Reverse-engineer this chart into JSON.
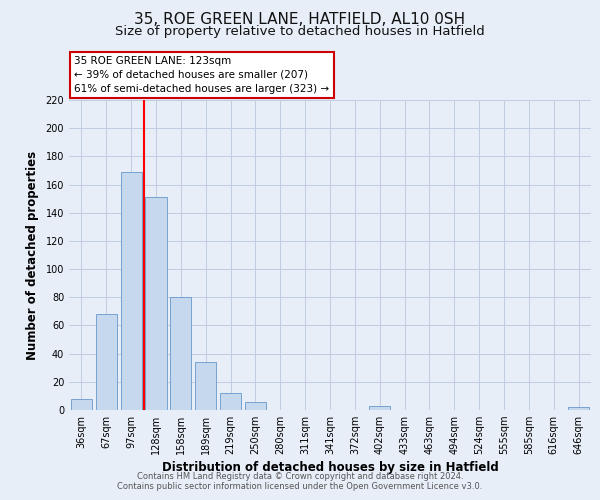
{
  "title": "35, ROE GREEN LANE, HATFIELD, AL10 0SH",
  "subtitle": "Size of property relative to detached houses in Hatfield",
  "xlabel": "Distribution of detached houses by size in Hatfield",
  "ylabel": "Number of detached properties",
  "bar_labels": [
    "36sqm",
    "67sqm",
    "97sqm",
    "128sqm",
    "158sqm",
    "189sqm",
    "219sqm",
    "250sqm",
    "280sqm",
    "311sqm",
    "341sqm",
    "372sqm",
    "402sqm",
    "433sqm",
    "463sqm",
    "494sqm",
    "524sqm",
    "555sqm",
    "585sqm",
    "616sqm",
    "646sqm"
  ],
  "bar_values": [
    8,
    68,
    169,
    151,
    80,
    34,
    12,
    6,
    0,
    0,
    0,
    0,
    3,
    0,
    0,
    0,
    0,
    0,
    0,
    0,
    2
  ],
  "bar_color": "#c5d8ee",
  "bar_edge_color": "#6699cc",
  "vline_color": "red",
  "vline_position": 3.0,
  "ylim": [
    0,
    220
  ],
  "yticks": [
    0,
    20,
    40,
    60,
    80,
    100,
    120,
    140,
    160,
    180,
    200,
    220
  ],
  "annotation_title": "35 ROE GREEN LANE: 123sqm",
  "annotation_line1": "← 39% of detached houses are smaller (207)",
  "annotation_line2": "61% of semi-detached houses are larger (323) →",
  "footer_line1": "Contains HM Land Registry data © Crown copyright and database right 2024.",
  "footer_line2": "Contains public sector information licensed under the Open Government Licence v3.0.",
  "background_color": "#e8eef8",
  "plot_bg_color": "#e8eef8",
  "grid_color": "#c0cce0",
  "title_fontsize": 11,
  "subtitle_fontsize": 9.5,
  "axis_label_fontsize": 8.5,
  "tick_fontsize": 7,
  "annotation_fontsize": 7.5,
  "footer_fontsize": 6
}
